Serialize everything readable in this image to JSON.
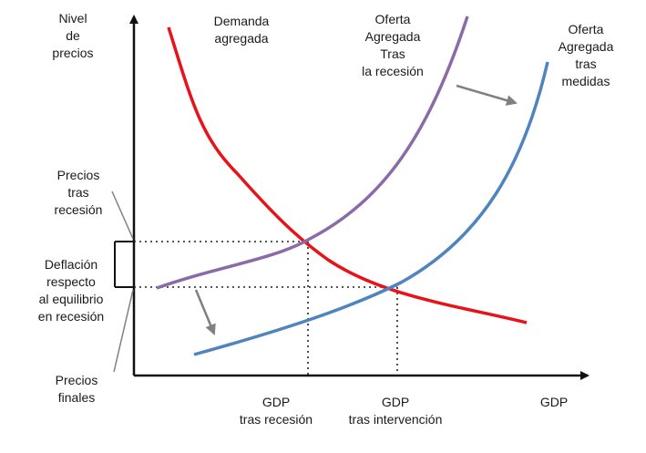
{
  "axes": {
    "y_label": [
      "Nivel",
      "de",
      "precios"
    ],
    "x_label": "GDP"
  },
  "curves": {
    "demand": {
      "label": [
        "Demanda",
        "agregada"
      ],
      "color": "#e8121b"
    },
    "supply_recession": {
      "label": [
        "Oferta",
        "Agregada",
        "Tras",
        "la recesión"
      ],
      "color": "#8a6aa8"
    },
    "supply_after_measures": {
      "label": [
        "Oferta",
        "Agregada",
        "tras",
        "medidas"
      ],
      "color": "#4f84bf"
    }
  },
  "annotations": {
    "prices_after_recession": [
      "Precios",
      "tras",
      "recesión"
    ],
    "deflation": [
      "Deflación",
      "respecto",
      "al equilibrio",
      "en recesión"
    ],
    "final_prices": [
      "Precios",
      "finales"
    ]
  },
  "x_ticks": {
    "gdp_recession": [
      "GDP",
      "tras recesión"
    ],
    "gdp_intervention": [
      "GDP",
      "tras intervención"
    ]
  },
  "colors": {
    "arrow_gray": "#808080",
    "axis": "#111111"
  }
}
